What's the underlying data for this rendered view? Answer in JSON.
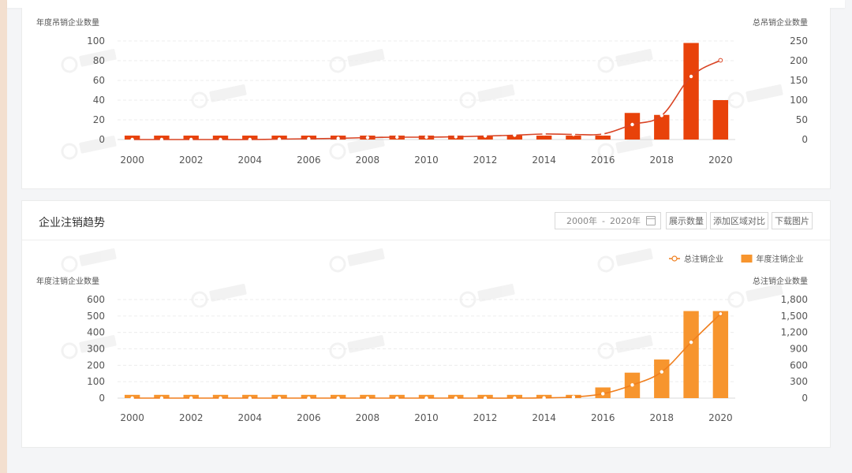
{
  "charts": [
    {
      "id": "revoked",
      "title": "",
      "left_axis_title": "年度吊销企业数量",
      "right_axis_title": "总吊销企业数量",
      "legend": [],
      "colors": {
        "bar": "#e8420a",
        "line": "#d94424"
      }
    },
    {
      "id": "deregistered",
      "title": "企业注销趋势",
      "left_axis_title": "年度注销企业数量",
      "right_axis_title": "总注销企业数量",
      "legend": [
        {
          "label": "总注销企业",
          "kind": "line"
        },
        {
          "label": "年度注销企业",
          "kind": "bar"
        }
      ],
      "colors": {
        "bar": "#f7952e",
        "line": "#f07f1e"
      },
      "toolbar": {
        "date_start": "2000年",
        "date_sep": "-",
        "date_end": "2020年",
        "buttons": [
          "展示数量",
          "添加区域对比",
          "下载图片"
        ]
      }
    }
  ],
  "chart_data": [
    {
      "type": "bar",
      "title": "",
      "ylabel": "年度吊销企业数量",
      "y2label": "总吊销企业数量",
      "categories": [
        "2000",
        "2001",
        "2002",
        "2003",
        "2004",
        "2005",
        "2006",
        "2007",
        "2008",
        "2009",
        "2010",
        "2011",
        "2012",
        "2013",
        "2014",
        "2015",
        "2016",
        "2017",
        "2018",
        "2019",
        "2020"
      ],
      "x_ticks": [
        "2000",
        "2002",
        "2004",
        "2006",
        "2008",
        "2010",
        "2012",
        "2014",
        "2016",
        "2018",
        "2020"
      ],
      "ylim": [
        0,
        100
      ],
      "y_ticks": [
        0,
        20,
        40,
        60,
        80,
        100
      ],
      "y2lim": [
        0,
        250
      ],
      "y2_ticks": [
        0,
        50,
        100,
        150,
        200,
        250
      ],
      "series": [
        {
          "axis": "left",
          "type": "bar",
          "values": [
            4,
            4,
            4,
            4,
            4,
            4,
            4,
            4,
            4,
            4,
            4,
            4,
            4,
            4,
            4,
            4,
            4,
            27,
            25,
            98,
            40
          ]
        },
        {
          "axis": "right",
          "type": "line",
          "values": [
            0,
            0,
            0,
            0,
            0,
            1,
            2,
            3,
            5,
            6,
            6,
            7,
            9,
            11,
            14,
            13,
            14,
            38,
            61,
            160,
            201
          ]
        }
      ],
      "grid": true
    },
    {
      "type": "bar",
      "title": "企业注销趋势",
      "ylabel": "年度注销企业数量",
      "y2label": "总注销企业数量",
      "categories": [
        "2000",
        "2001",
        "2002",
        "2003",
        "2004",
        "2005",
        "2006",
        "2007",
        "2008",
        "2009",
        "2010",
        "2011",
        "2012",
        "2013",
        "2014",
        "2015",
        "2016",
        "2017",
        "2018",
        "2019",
        "2020"
      ],
      "x_ticks": [
        "2000",
        "2002",
        "2004",
        "2006",
        "2008",
        "2010",
        "2012",
        "2014",
        "2016",
        "2018",
        "2020"
      ],
      "ylim": [
        0,
        600
      ],
      "y_ticks": [
        0,
        100,
        200,
        300,
        400,
        500,
        600
      ],
      "y2lim": [
        0,
        1800
      ],
      "y2_ticks": [
        "0",
        "300",
        "600",
        "900",
        "1,200",
        "1,500",
        "1,800"
      ],
      "series": [
        {
          "name": "年度注销企业",
          "axis": "left",
          "type": "bar",
          "values": [
            20,
            20,
            20,
            20,
            20,
            20,
            20,
            20,
            20,
            20,
            20,
            20,
            20,
            20,
            20,
            20,
            65,
            155,
            235,
            530,
            530
          ]
        },
        {
          "name": "总注销企业",
          "axis": "right",
          "type": "line",
          "values": [
            0,
            0,
            0,
            0,
            0,
            0,
            0,
            0,
            0,
            0,
            0,
            0,
            0,
            0,
            5,
            20,
            80,
            240,
            480,
            1020,
            1540
          ]
        }
      ],
      "grid": true,
      "legend_position": "top-right"
    }
  ]
}
